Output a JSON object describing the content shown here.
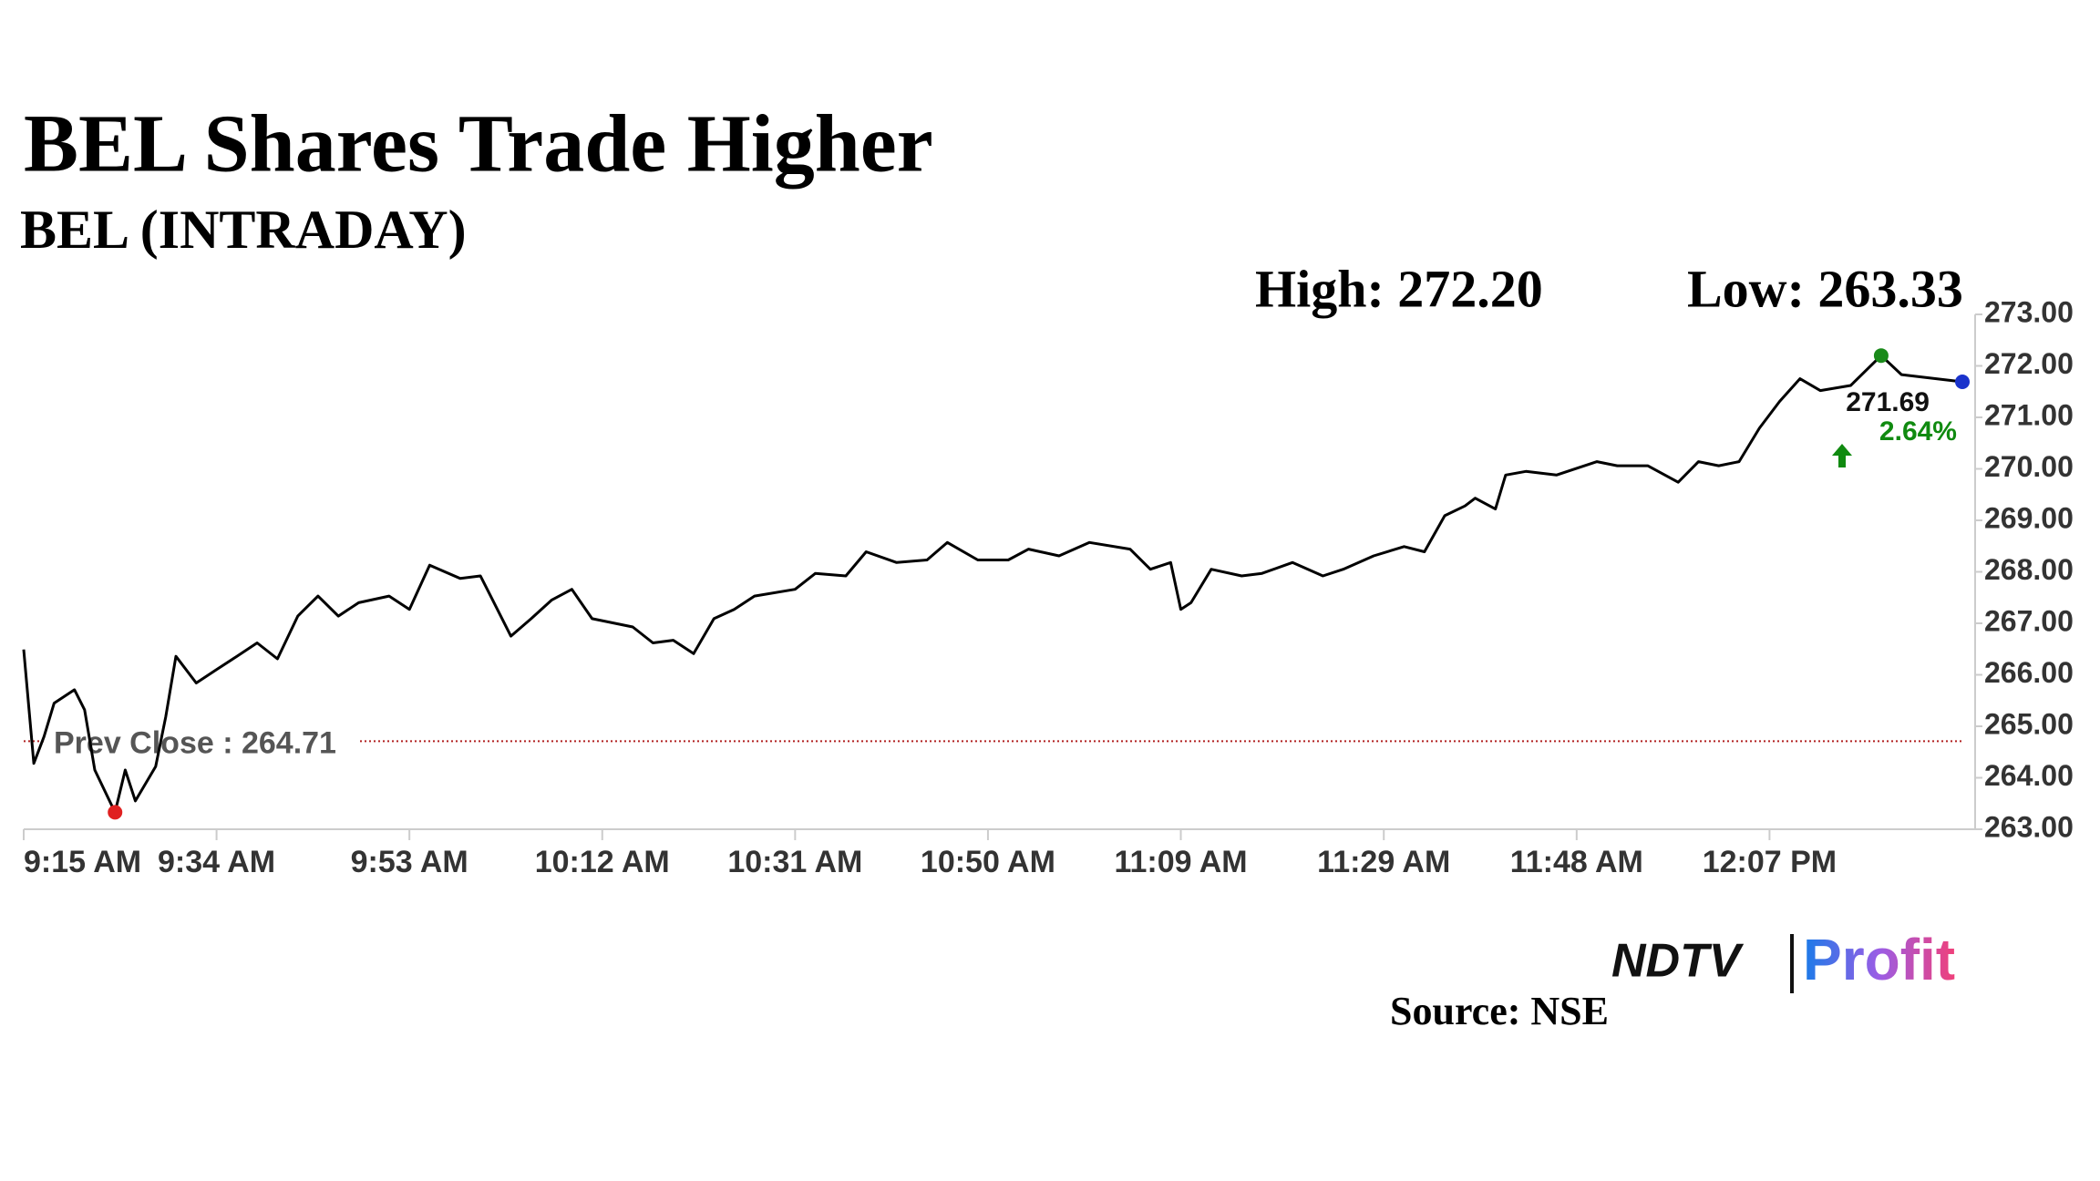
{
  "chart_data": {
    "type": "line",
    "title": "BEL Shares Trade Higher",
    "subtitle": "BEL (INTRADAY)",
    "x": [
      "9:15 AM",
      "9:16 AM",
      "9:17 AM",
      "9:18 AM",
      "9:20 AM",
      "9:21 AM",
      "9:22 AM",
      "9:24 AM",
      "9:25 AM",
      "9:26 AM",
      "9:28 AM",
      "9:29 AM",
      "9:30 AM",
      "9:32 AM",
      "9:34 AM",
      "9:36 AM",
      "9:38 AM",
      "9:40 AM",
      "9:42 AM",
      "9:44 AM",
      "9:46 AM",
      "9:48 AM",
      "9:51 AM",
      "9:53 AM",
      "9:55 AM",
      "9:58 AM",
      "10:00 AM",
      "10:01 AM",
      "10:03 AM",
      "10:05 AM",
      "10:07 AM",
      "10:09 AM",
      "10:11 AM",
      "10:15 AM",
      "10:17 AM",
      "10:19 AM",
      "10:21 AM",
      "10:23 AM",
      "10:25 AM",
      "10:27 AM",
      "10:31 AM",
      "10:33 AM",
      "10:36 AM",
      "10:38 AM",
      "10:41 AM",
      "10:44 AM",
      "10:46 AM",
      "10:49 AM",
      "10:52 AM",
      "10:54 AM",
      "10:57 AM",
      "11:00 AM",
      "11:04 AM",
      "11:06 AM",
      "11:08 AM",
      "11:09 AM",
      "11:10 AM",
      "11:12 AM",
      "11:15 AM",
      "11:17 AM",
      "11:20 AM",
      "11:23 AM",
      "11:25 AM",
      "11:28 AM",
      "11:31 AM",
      "11:33 AM",
      "11:35 AM",
      "11:37 AM",
      "11:38 AM",
      "11:40 AM",
      "11:41 AM",
      "11:43 AM",
      "11:46 AM",
      "11:48 AM",
      "11:50 AM",
      "11:52 AM",
      "11:55 AM",
      "11:58 AM",
      "12:00 PM",
      "12:02 PM",
      "12:04 PM",
      "12:06 PM",
      "12:08 PM",
      "12:10 PM",
      "12:12 PM",
      "12:15 PM",
      "12:18 PM",
      "12:20 PM",
      "12:26 PM"
    ],
    "series": [
      {
        "color": "#000000",
        "values": [
          266.49,
          264.28,
          264.8,
          265.45,
          265.71,
          265.32,
          264.15,
          263.33,
          264.15,
          263.55,
          264.22,
          265.19,
          266.36,
          265.84,
          266.1,
          266.36,
          266.62,
          266.31,
          267.14,
          267.53,
          267.14,
          267.4,
          267.53,
          267.27,
          268.13,
          267.87,
          267.92,
          267.53,
          266.75,
          267.09,
          267.45,
          267.66,
          267.09,
          266.93,
          266.62,
          266.67,
          266.41,
          267.09,
          267.27,
          267.53,
          267.66,
          267.97,
          267.92,
          268.39,
          268.18,
          268.23,
          268.57,
          268.23,
          268.23,
          268.44,
          268.31,
          268.57,
          268.44,
          268.05,
          268.18,
          267.27,
          267.4,
          268.05,
          267.92,
          267.97,
          268.18,
          267.92,
          268.05,
          268.31,
          268.49,
          268.39,
          269.09,
          269.28,
          269.43,
          269.22,
          269.88,
          269.95,
          269.88,
          270.01,
          270.14,
          270.06,
          270.06,
          269.74,
          270.14,
          270.06,
          270.14,
          270.79,
          271.31,
          271.75,
          271.52,
          271.62,
          272.2,
          271.83,
          271.69
        ]
      }
    ],
    "xlim": [
      "9:15 AM",
      "12:26 PM"
    ],
    "xticks": [
      "9:15 AM",
      "9:34 AM",
      "9:53 AM",
      "10:12 AM",
      "10:31 AM",
      "10:50 AM",
      "11:09 AM",
      "11:29 AM",
      "11:48 AM",
      "12:07 PM"
    ],
    "ylim": [
      263,
      273
    ],
    "yticks": [
      {
        "value": 263,
        "label": "263.00"
      },
      {
        "value": 264,
        "label": "264.00"
      },
      {
        "value": 265,
        "label": "265.00"
      },
      {
        "value": 266,
        "label": "266.00"
      },
      {
        "value": 267,
        "label": "267.00"
      },
      {
        "value": 268,
        "label": "268.00"
      },
      {
        "value": 269,
        "label": "269.00"
      },
      {
        "value": 270,
        "label": "270.00"
      },
      {
        "value": 271,
        "label": "271.00"
      },
      {
        "value": 272,
        "label": "272.00"
      },
      {
        "value": 273,
        "label": "273.00"
      }
    ],
    "high": {
      "value": 272.2,
      "label": "High: 272.20",
      "x": "12:18 PM",
      "color": "#1a8a1a"
    },
    "low": {
      "value": 263.33,
      "label": "Low: 263.33",
      "x": "9:24 AM",
      "color": "#e02020"
    },
    "prev_close": {
      "value": 264.71,
      "label": "Prev Close : 264.71",
      "color": "#b22222"
    },
    "change": {
      "value": 2.64,
      "label": "2.64%",
      "color": "#108a10"
    },
    "last_color": "#1a33cc",
    "footer": {
      "source": "Source: NSE",
      "logo_left": "NDTV",
      "logo_right": "Profit"
    }
  }
}
